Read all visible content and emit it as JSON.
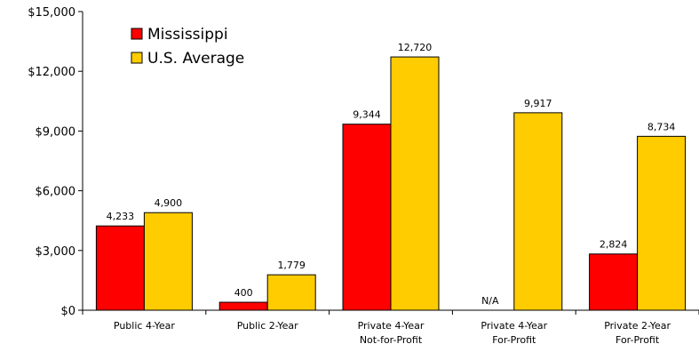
{
  "chart_data": {
    "type": "bar",
    "categories": [
      [
        "Public 4-Year"
      ],
      [
        "Public 2-Year"
      ],
      [
        "Private 4-Year",
        "Not-for-Profit"
      ],
      [
        "Private 4-Year",
        "For-Profit"
      ],
      [
        "Private 2-Year",
        "For-Profit"
      ]
    ],
    "series": [
      {
        "name": "Mississippi",
        "color": "#ff0000",
        "values": [
          4233,
          400,
          9344,
          null,
          2824
        ],
        "labels": [
          "4,233",
          "400",
          "9,344",
          "N/A",
          "2,824"
        ]
      },
      {
        "name": "U.S. Average",
        "color": "#ffcc00",
        "values": [
          4900,
          1779,
          12720,
          9917,
          8734
        ],
        "labels": [
          "4,900",
          "1,779",
          "12,720",
          "9,917",
          "8,734"
        ]
      }
    ],
    "ylim": [
      0,
      15000
    ],
    "yticks": [
      0,
      3000,
      6000,
      9000,
      12000,
      15000
    ],
    "ytick_labels": [
      "$0",
      "$3,000",
      "$6,000",
      "$9,000",
      "$12,000",
      "$15,000"
    ],
    "legend_position": "top-left",
    "grid": false
  }
}
